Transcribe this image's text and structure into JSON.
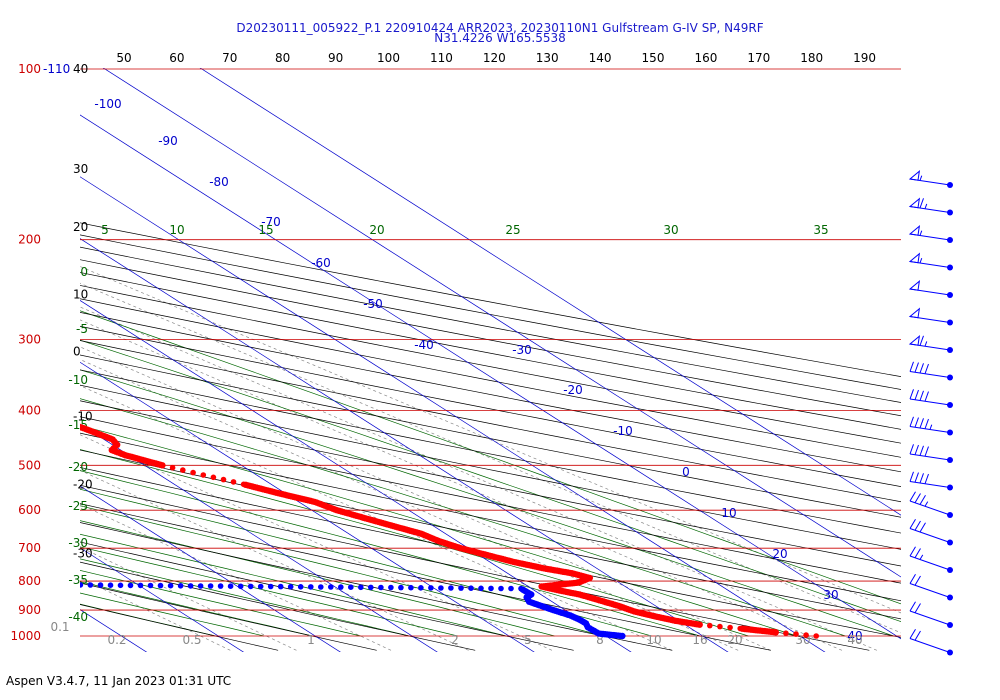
{
  "header": {
    "title_line1": "D20230111_005922_P.1 220910424 ARR2023, 20230110N1 Gulfstream G-IV SP, N49RF",
    "title_line2": "N31.4226 W165.5538"
  },
  "footer": {
    "text": "Aspen V3.4.7, 11 Jan 2023  01:31 UTC"
  },
  "colors": {
    "temperature": "#ff0000",
    "dewpoint": "#0000ff",
    "isobar": "#cc0000",
    "isotherm": "#0000cc",
    "dry_adiabat": "#000000",
    "moist_adiabat": "#006600",
    "mixing_ratio": "#888888",
    "title": "#1a1acc"
  },
  "chart_data": {
    "type": "line",
    "chart_kind": "skew-T log-P sounding",
    "title": "D20230111_005922_P.1 220910424 ARR2023, 20230110N1 Gulfstream G-IV SP, N49RF",
    "subtitle": "N31.4226 W165.5538",
    "p_range": [
      1000,
      100
    ],
    "pressure_labels": [
      {
        "p": 100,
        "label": "100"
      },
      {
        "p": 200,
        "label": "200"
      },
      {
        "p": 300,
        "label": "300"
      },
      {
        "p": 400,
        "label": "400"
      },
      {
        "p": 500,
        "label": "500"
      },
      {
        "p": 600,
        "label": "600"
      },
      {
        "p": 700,
        "label": "700"
      },
      {
        "p": 800,
        "label": "800"
      },
      {
        "p": 900,
        "label": "900"
      },
      {
        "p": 1000,
        "label": "1000"
      }
    ],
    "corner_label": "-110",
    "top_scale_labels": [
      "50",
      "60",
      "70",
      "80",
      "90",
      "100",
      "110",
      "120",
      "130",
      "140",
      "150",
      "160",
      "170",
      "180",
      "190"
    ],
    "left_scale": [
      {
        "p": 100,
        "label": "40"
      },
      {
        "p": 150,
        "label": "30"
      },
      {
        "p": 190,
        "label": "20"
      },
      {
        "p": 250,
        "label": "10"
      },
      {
        "p": 315,
        "label": "0"
      },
      {
        "p": 410,
        "label": "-10"
      },
      {
        "p": 540,
        "label": "-20"
      },
      {
        "p": 715,
        "label": "-30"
      }
    ],
    "isotherm_labels": [
      "-100",
      "-90",
      "-80",
      "-70",
      "-60",
      "-50",
      "-40",
      "-30",
      "-20",
      "-10",
      "0",
      "10",
      "20",
      "30",
      "40"
    ],
    "moist_adiabat_labels_top": [
      "5",
      "10",
      "15",
      "20",
      "25",
      "30",
      "35"
    ],
    "moist_adiabat_labels_left": [
      "0",
      "-5",
      "-10",
      "-15",
      "-20",
      "-25",
      "-30",
      "-35",
      "-40"
    ],
    "mixing_ratio_labels": [
      "0.1",
      "0.2",
      "0.5",
      "1",
      "2",
      "5",
      "8",
      "10",
      "16",
      "20",
      "30",
      "40"
    ],
    "series": [
      {
        "name": "Temperature",
        "units": "C",
        "points": [
          [
            1000,
            22.0
          ],
          [
            985,
            18.5
          ],
          [
            970,
            15.5
          ],
          [
            955,
            12.0
          ],
          [
            940,
            10.2
          ],
          [
            925,
            9.0
          ],
          [
            905,
            7.6
          ],
          [
            885,
            7.0
          ],
          [
            865,
            6.0
          ],
          [
            845,
            5.0
          ],
          [
            830,
            3.5
          ],
          [
            818,
            2.5
          ],
          [
            805,
            7.0
          ],
          [
            790,
            9.0
          ],
          [
            775,
            8.0
          ],
          [
            760,
            6.0
          ],
          [
            740,
            4.0
          ],
          [
            720,
            2.5
          ],
          [
            700,
            1.0
          ],
          [
            680,
            0.0
          ],
          [
            660,
            -0.5
          ],
          [
            640,
            -2.0
          ],
          [
            620,
            -3.5
          ],
          [
            600,
            -5.0
          ],
          [
            580,
            -5.8
          ],
          [
            560,
            -8.0
          ],
          [
            540,
            -10.0
          ],
          [
            520,
            -12.5
          ],
          [
            500,
            -15.0
          ],
          [
            480,
            -17.0
          ],
          [
            470,
            -17.5
          ],
          [
            460,
            -16.0
          ],
          [
            450,
            -15.5
          ],
          [
            440,
            -16.0
          ],
          [
            430,
            -16.5
          ],
          [
            420,
            -17.5
          ],
          [
            400,
            -19.5
          ],
          [
            390,
            -21.0
          ],
          [
            380,
            -22.5
          ],
          [
            370,
            -23.0
          ],
          [
            362,
            -21.0
          ],
          [
            355,
            -18.0
          ],
          [
            340,
            -17.0
          ],
          [
            325,
            -16.5
          ],
          [
            310,
            -17.5
          ],
          [
            300,
            -19.0
          ],
          [
            285,
            -21.5
          ],
          [
            270,
            -23.5
          ],
          [
            255,
            -26.5
          ],
          [
            245,
            -29.0
          ],
          [
            235,
            -30.5
          ],
          [
            225,
            -32.5
          ],
          [
            210,
            -35.0
          ],
          [
            195,
            -38.0
          ],
          [
            180,
            -42.5
          ],
          [
            168,
            -46.0
          ],
          [
            158,
            -47.5
          ]
        ]
      },
      {
        "name": "Dewpoint",
        "units": "C",
        "points": [
          [
            1000,
            2.0
          ],
          [
            990,
            0.0
          ],
          [
            980,
            0.0
          ],
          [
            965,
            0.0
          ],
          [
            950,
            0.5
          ],
          [
            935,
            0.5
          ],
          [
            920,
            0.3
          ],
          [
            900,
            -0.5
          ],
          [
            885,
            -1.0
          ],
          [
            870,
            -1.5
          ],
          [
            855,
            -1.0
          ],
          [
            845,
            0.0
          ],
          [
            835,
            0.0
          ],
          [
            825,
            0.0
          ],
          [
            810,
            -55.0
          ],
          [
            800,
            -60.0
          ],
          [
            790,
            -64.0
          ],
          [
            785,
            -70.0
          ],
          [
            750,
            -54.0
          ],
          [
            720,
            -57.0
          ],
          [
            700,
            -60.0
          ],
          [
            680,
            -55.0
          ],
          [
            660,
            -49.0
          ],
          [
            640,
            -45.0
          ],
          [
            620,
            -44.5
          ],
          [
            600,
            -45.5
          ],
          [
            575,
            -47.5
          ],
          [
            560,
            -47.0
          ],
          [
            540,
            -44.0
          ],
          [
            520,
            -38.0
          ],
          [
            500,
            -37.0
          ],
          [
            480,
            -37.0
          ],
          [
            470,
            -38.0
          ],
          [
            460,
            -22.0
          ],
          [
            445,
            -20.5
          ],
          [
            430,
            -22.5
          ],
          [
            420,
            -27.5
          ],
          [
            405,
            -29.0
          ],
          [
            390,
            -29.5
          ],
          [
            375,
            -29.0
          ],
          [
            370,
            -55.5
          ],
          [
            355,
            -56.5
          ],
          [
            340,
            -53.5
          ],
          [
            320,
            -48.0
          ],
          [
            300,
            -51.5
          ],
          [
            285,
            -52.0
          ],
          [
            270,
            -51.0
          ],
          [
            255,
            -51.5
          ],
          [
            240,
            -53.5
          ],
          [
            225,
            -54.5
          ],
          [
            210,
            -56.5
          ],
          [
            200,
            -58.0
          ]
        ]
      }
    ],
    "wind_barbs": [
      {
        "p": 160,
        "speed_kt": 55
      },
      {
        "p": 180,
        "speed_kt": 65
      },
      {
        "p": 200,
        "speed_kt": 55
      },
      {
        "p": 225,
        "speed_kt": 55
      },
      {
        "p": 250,
        "speed_kt": 50
      },
      {
        "p": 275,
        "speed_kt": 50
      },
      {
        "p": 300,
        "speed_kt": 65
      },
      {
        "p": 335,
        "speed_kt": 40
      },
      {
        "p": 365,
        "speed_kt": 40
      },
      {
        "p": 400,
        "speed_kt": 45
      },
      {
        "p": 440,
        "speed_kt": 40
      },
      {
        "p": 485,
        "speed_kt": 40
      },
      {
        "p": 535,
        "speed_kt": 35
      },
      {
        "p": 595,
        "speed_kt": 30
      },
      {
        "p": 660,
        "speed_kt": 25
      },
      {
        "p": 740,
        "speed_kt": 20
      },
      {
        "p": 830,
        "speed_kt": 20
      },
      {
        "p": 950,
        "speed_kt": 20
      }
    ]
  }
}
